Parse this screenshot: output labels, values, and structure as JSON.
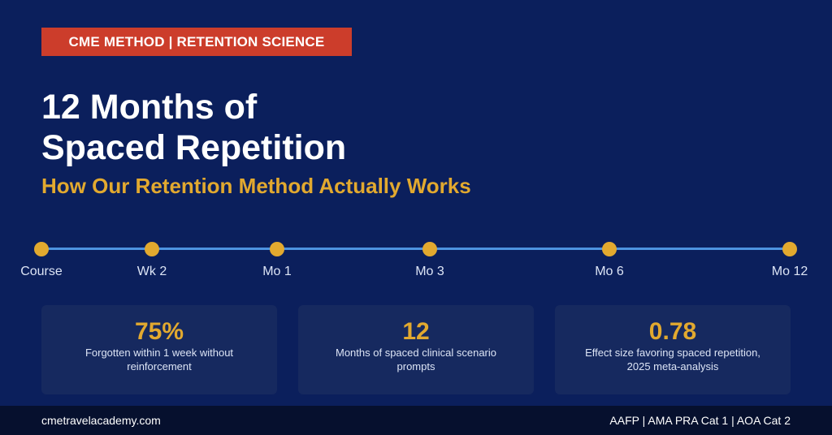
{
  "badge": "CME METHOD | RETENTION SCIENCE",
  "title": {
    "line1": "12 Months of",
    "line2": "Spaced Repetition"
  },
  "subtitle": "How Our Retention Method Actually Works",
  "timeline": {
    "milestones": [
      "Course",
      "Wk 2",
      "Mo 1",
      "Mo 3",
      "Mo 6",
      "Mo 12"
    ]
  },
  "stats": [
    {
      "value": "75%",
      "description": "Forgotten within 1 week without reinforcement"
    },
    {
      "value": "12",
      "description": "Months of spaced clinical scenario prompts"
    },
    {
      "value": "0.78",
      "description": "Effect size favoring spaced repetition, 2025 meta-analysis"
    }
  ],
  "footer": {
    "website": "cmetravelacademy.com",
    "accreditations": "AAFP | AMA PRA Cat 1 | AOA Cat 2"
  },
  "colors": {
    "background": "#0b1f5c",
    "badge": "#cc3d2b",
    "accent_gold": "#e2a92f",
    "timeline_line": "#4d93e0",
    "card": "#16295f",
    "footer": "#06102e"
  }
}
